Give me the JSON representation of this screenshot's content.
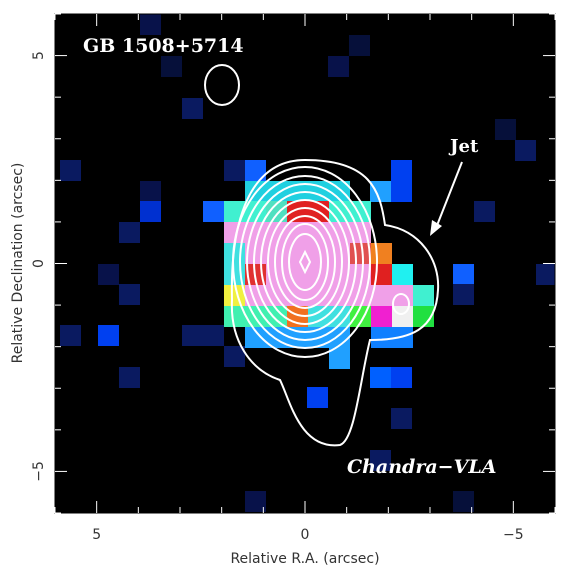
{
  "chart_data": {
    "type": "image",
    "title": "GB 1508+5714",
    "annotations": [
      "Jet",
      "Chandra−VLA"
    ],
    "x_label": "Relative R.A. (arcsec)",
    "y_label": "Relative Declination (arcsec)",
    "xlim": [
      6,
      -6
    ],
    "ylim": [
      -6,
      6
    ],
    "xticks": [
      5,
      0,
      {
        "value": -5,
        "label": "−5"
      }
    ],
    "yticks": [
      {
        "value": -5,
        "label": "−5"
      },
      0,
      5
    ],
    "xminor": [
      6,
      4,
      3,
      2,
      1,
      -1,
      -2,
      -3,
      -4,
      -6
    ],
    "yminor": [
      -6,
      -4,
      -3,
      -2,
      -1,
      1,
      2,
      3,
      4,
      6
    ]
  }
}
